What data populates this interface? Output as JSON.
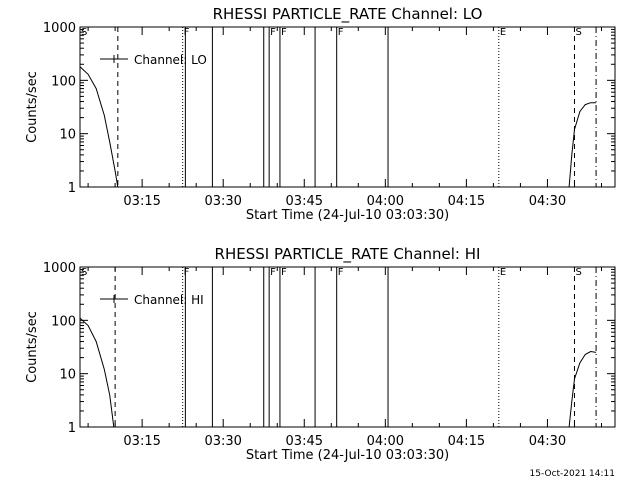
{
  "footer": {
    "date_stamp": "15-Oct-2021 14:11"
  },
  "chart_data": [
    {
      "type": "line",
      "title": "RHESSI PARTICLE_RATE Channel: LO",
      "xlabel": "Start Time (24-Jul-10 03:03:30)",
      "ylabel": "Counts/sec",
      "y_scale": "log",
      "ylim": [
        1,
        1000
      ],
      "xlim": [
        "03:03:30",
        "04:42:30"
      ],
      "x_ticks": [
        "03:15",
        "03:30",
        "03:45",
        "04:00",
        "04:15",
        "04:30"
      ],
      "y_ticks": [
        "1",
        "10",
        "100",
        "1000"
      ],
      "legend": {
        "label": "Channel: LO",
        "position": "top-left"
      },
      "series": [
        {
          "name": "Channel: LO",
          "segment": 1,
          "x": [
            "03:03:30",
            "03:05:00",
            "03:06:30",
            "03:08:00",
            "03:09:00",
            "03:10:00",
            "03:10:30"
          ],
          "values": [
            180,
            130,
            70,
            22,
            7,
            2,
            1
          ]
        },
        {
          "name": "Channel: LO",
          "segment": 2,
          "x": [
            "04:34:00",
            "04:34:30",
            "04:35:00",
            "04:36:00",
            "04:37:00",
            "04:38:00",
            "04:39:00"
          ],
          "values": [
            1,
            4,
            12,
            26,
            35,
            38,
            38
          ]
        }
      ],
      "event_lines": [
        {
          "label": "S",
          "time": "03:03:30",
          "style": "solid"
        },
        {
          "label": "",
          "time": "03:10:30",
          "style": "dashed"
        },
        {
          "label": "F",
          "time": "03:22:30",
          "style": "dotted"
        },
        {
          "label": "",
          "time": "03:23:00",
          "style": "solid"
        },
        {
          "label": "",
          "time": "03:28:00",
          "style": "solid"
        },
        {
          "label": "",
          "time": "03:37:30",
          "style": "solid"
        },
        {
          "label": "F",
          "time": "03:38:30",
          "style": "solid"
        },
        {
          "label": "F",
          "time": "03:40:30",
          "style": "solid"
        },
        {
          "label": "",
          "time": "03:47:00",
          "style": "solid"
        },
        {
          "label": "F",
          "time": "03:51:00",
          "style": "solid"
        },
        {
          "label": "",
          "time": "04:00:30",
          "style": "solid"
        },
        {
          "label": "E",
          "time": "04:21:00",
          "style": "dotted"
        },
        {
          "label": "S",
          "time": "04:35:00",
          "style": "dashed"
        },
        {
          "label": "",
          "time": "04:39:00",
          "style": "dashdot"
        }
      ]
    },
    {
      "type": "line",
      "title": "RHESSI PARTICLE_RATE Channel: HI",
      "xlabel": "Start Time (24-Jul-10 03:03:30)",
      "ylabel": "Counts/sec",
      "y_scale": "log",
      "ylim": [
        1,
        1000
      ],
      "xlim": [
        "03:03:30",
        "04:42:30"
      ],
      "x_ticks": [
        "03:15",
        "03:30",
        "03:45",
        "04:00",
        "04:15",
        "04:30"
      ],
      "y_ticks": [
        "1",
        "10",
        "100",
        "1000"
      ],
      "legend": {
        "label": "Channel: HI",
        "position": "top-left"
      },
      "series": [
        {
          "name": "Channel: HI",
          "segment": 1,
          "x": [
            "03:03:30",
            "03:05:00",
            "03:06:30",
            "03:08:00",
            "03:09:00",
            "03:09:45"
          ],
          "values": [
            110,
            80,
            40,
            12,
            4,
            1
          ]
        },
        {
          "name": "Channel: HI",
          "segment": 2,
          "x": [
            "04:34:00",
            "04:34:30",
            "04:35:00",
            "04:36:00",
            "04:37:00",
            "04:38:00",
            "04:39:00"
          ],
          "values": [
            1,
            3,
            8,
            16,
            23,
            26,
            25
          ]
        }
      ],
      "event_lines": [
        {
          "label": "S",
          "time": "03:03:30",
          "style": "solid"
        },
        {
          "label": "",
          "time": "03:10:00",
          "style": "dashed"
        },
        {
          "label": "F",
          "time": "03:22:30",
          "style": "dotted"
        },
        {
          "label": "",
          "time": "03:23:00",
          "style": "solid"
        },
        {
          "label": "",
          "time": "03:28:00",
          "style": "solid"
        },
        {
          "label": "",
          "time": "03:37:30",
          "style": "solid"
        },
        {
          "label": "F",
          "time": "03:38:30",
          "style": "solid"
        },
        {
          "label": "F",
          "time": "03:40:30",
          "style": "solid"
        },
        {
          "label": "",
          "time": "03:47:00",
          "style": "solid"
        },
        {
          "label": "F",
          "time": "03:51:00",
          "style": "solid"
        },
        {
          "label": "",
          "time": "04:00:30",
          "style": "solid"
        },
        {
          "label": "E",
          "time": "04:21:00",
          "style": "dotted"
        },
        {
          "label": "S",
          "time": "04:35:00",
          "style": "dashed"
        },
        {
          "label": "",
          "time": "04:39:00",
          "style": "dashdot"
        }
      ]
    }
  ]
}
